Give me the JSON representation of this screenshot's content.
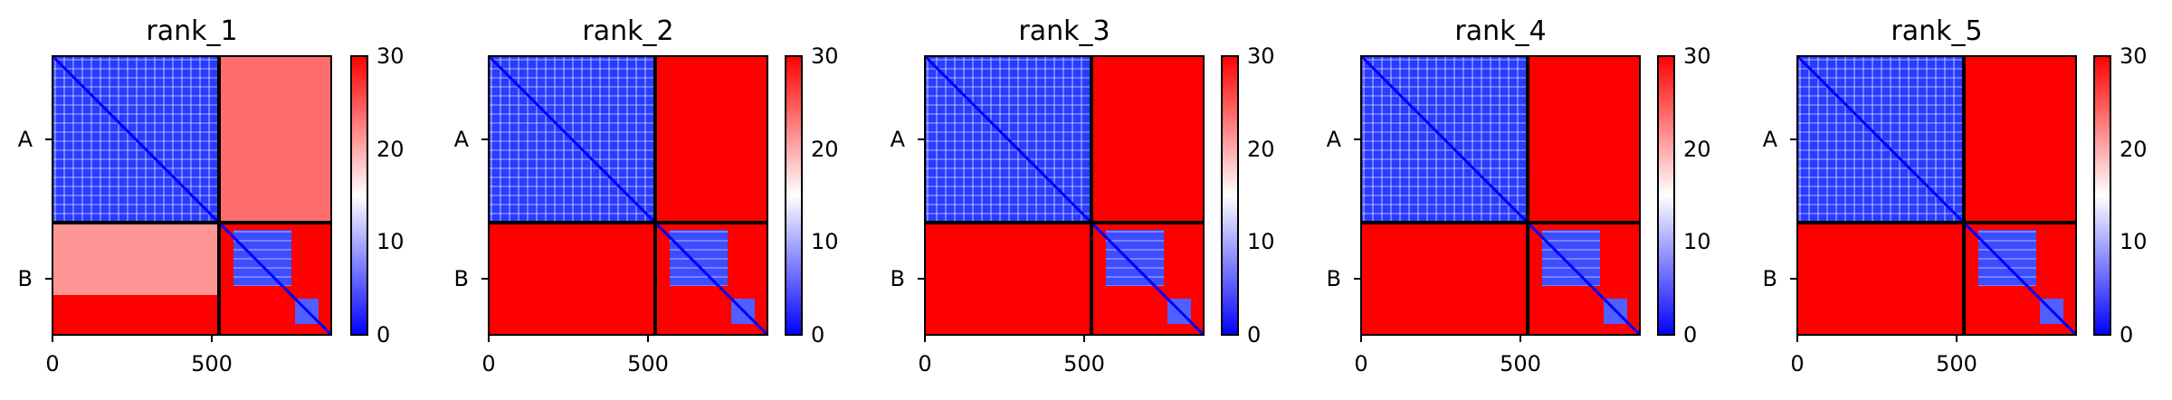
{
  "chart_data": [
    {
      "type": "heatmap",
      "title": "rank_1",
      "xticks": [
        "0",
        "500"
      ],
      "chain_labels": [
        "A",
        "B"
      ],
      "colorbar": {
        "ticks": [
          "0",
          "10",
          "20",
          "30"
        ],
        "min": 0,
        "max": 30,
        "cmap": "bwr"
      }
    },
    {
      "type": "heatmap",
      "title": "rank_2",
      "xticks": [
        "0",
        "500"
      ],
      "chain_labels": [
        "A",
        "B"
      ],
      "colorbar": {
        "ticks": [
          "0",
          "10",
          "20",
          "30"
        ],
        "min": 0,
        "max": 30,
        "cmap": "bwr"
      }
    },
    {
      "type": "heatmap",
      "title": "rank_3",
      "xticks": [
        "0",
        "500"
      ],
      "chain_labels": [
        "A",
        "B"
      ],
      "colorbar": {
        "ticks": [
          "0",
          "10",
          "20",
          "30"
        ],
        "min": 0,
        "max": 30,
        "cmap": "bwr"
      }
    },
    {
      "type": "heatmap",
      "title": "rank_4",
      "xticks": [
        "0",
        "500"
      ],
      "chain_labels": [
        "A",
        "B"
      ],
      "colorbar": {
        "ticks": [
          "0",
          "10",
          "20",
          "30"
        ],
        "min": 0,
        "max": 30,
        "cmap": "bwr"
      }
    },
    {
      "type": "heatmap",
      "title": "rank_5",
      "xticks": [
        "0",
        "500"
      ],
      "chain_labels": [
        "A",
        "B"
      ],
      "colorbar": {
        "ticks": [
          "0",
          "10",
          "20",
          "30"
        ],
        "min": 0,
        "max": 30,
        "cmap": "bwr"
      }
    }
  ],
  "colors": {
    "low": "#0000ff",
    "mid": "#ffffff",
    "high": "#ff0000"
  }
}
